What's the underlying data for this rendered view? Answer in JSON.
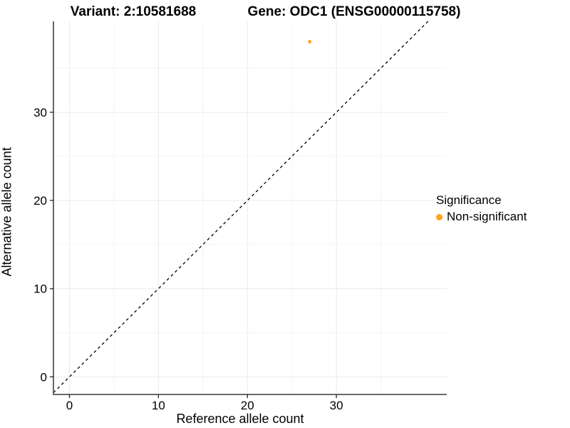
{
  "titles": {
    "variant": "Variant: 2:10581688",
    "gene": "Gene: ODC1 (ENSG00000115758)"
  },
  "legend": {
    "title": "Significance",
    "items": [
      {
        "label": "Non-significant",
        "color": "#FFA320"
      }
    ]
  },
  "chart_data": {
    "type": "scatter",
    "title": "Variant: 2:10581688 — Gene: ODC1 (ENSG00000115758)",
    "xlabel": "Reference allele count",
    "ylabel": "Alternative allele count",
    "series": [
      {
        "name": "Non-significant",
        "color": "#FFA320",
        "points": [
          {
            "x": 27,
            "y": 38
          }
        ]
      }
    ],
    "reference_line": {
      "type": "identity",
      "slope": 1,
      "intercept": 0,
      "style": "dashed",
      "color": "#000000"
    },
    "x_ticks": [
      0,
      10,
      20,
      30
    ],
    "y_ticks": [
      0,
      10,
      20,
      30
    ],
    "x_minor": [
      5,
      15,
      25,
      35
    ],
    "y_minor": [
      5,
      15,
      25,
      35
    ],
    "xlim": [
      -1.8,
      42.4
    ],
    "ylim": [
      -2.0,
      40.3
    ],
    "grid": true,
    "legend_position": "right",
    "colors": {
      "axis_line": "#555555",
      "major_grid": "#ebebeb",
      "minor_grid": "#f5f5f5",
      "tick_mark": "#333333"
    }
  }
}
